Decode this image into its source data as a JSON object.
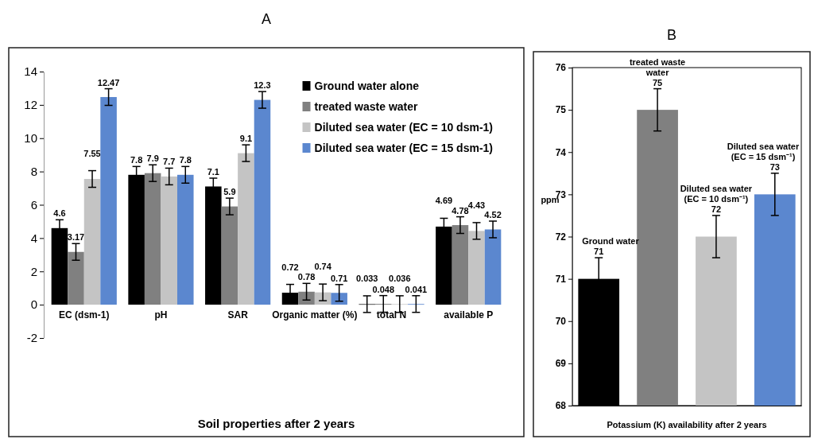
{
  "chart_data": [
    {
      "type": "bar",
      "title": "A",
      "xlabel": "Soil properties after 2 years",
      "categories": [
        "EC (dsm-1)",
        "pH",
        "SAR",
        "Organic matter (%)",
        "total N",
        "available P"
      ],
      "ylim": [
        -2,
        14
      ],
      "yticks": [
        -2,
        0,
        2,
        4,
        6,
        8,
        10,
        12,
        14
      ],
      "grid": false,
      "legend": "top right",
      "data_labels": true,
      "series": [
        {
          "name": "Ground water alone",
          "color": "#000000",
          "values": [
            4.6,
            7.8,
            7.1,
            0.72,
            0.033,
            4.69
          ],
          "errors": [
            0.5,
            0.5,
            0.5,
            0.5,
            0.5,
            0.5
          ]
        },
        {
          "name": "treated waste water",
          "color": "#808080",
          "values": [
            3.17,
            7.9,
            5.9,
            0.78,
            0.048,
            4.78
          ],
          "errors": [
            0.5,
            0.5,
            0.5,
            0.5,
            0.5,
            0.5
          ]
        },
        {
          "name": "Diluted sea water (EC = 10 dsm-1)",
          "color": "#c4c4c4",
          "values": [
            7.55,
            7.7,
            9.1,
            0.74,
            0.036,
            4.43
          ],
          "errors": [
            0.5,
            0.5,
            0.5,
            0.5,
            0.5,
            0.5
          ]
        },
        {
          "name": "Diluted sea water (EC = 15 dsm-1)",
          "color": "#5b87cf",
          "values": [
            12.47,
            7.8,
            12.3,
            0.71,
            0.041,
            4.52
          ],
          "errors": [
            0.5,
            0.5,
            0.5,
            0.5,
            0.5,
            0.5
          ]
        }
      ]
    },
    {
      "type": "bar",
      "title": "B",
      "xlabel": "Potassium (K) availability after 2 years",
      "ylabel": "ppm",
      "categories": [
        null,
        null,
        null,
        null
      ],
      "ylim": [
        68,
        76
      ],
      "yticks": [
        68,
        69,
        70,
        71,
        72,
        73,
        74,
        75,
        76
      ],
      "grid": false,
      "legend": false,
      "data_labels": true,
      "annotations": [
        "Ground water",
        "treated waste water",
        "Diluted sea water (EC = 10 dsm⁻¹)",
        "Diluted sea water (EC = 15 dsm⁻¹)"
      ],
      "values": [
        71,
        75,
        72,
        73
      ],
      "errors": [
        0.5,
        0.5,
        0.5,
        0.5
      ],
      "colors": [
        "#000000",
        "#808080",
        "#c4c4c4",
        "#5b87cf"
      ]
    }
  ]
}
